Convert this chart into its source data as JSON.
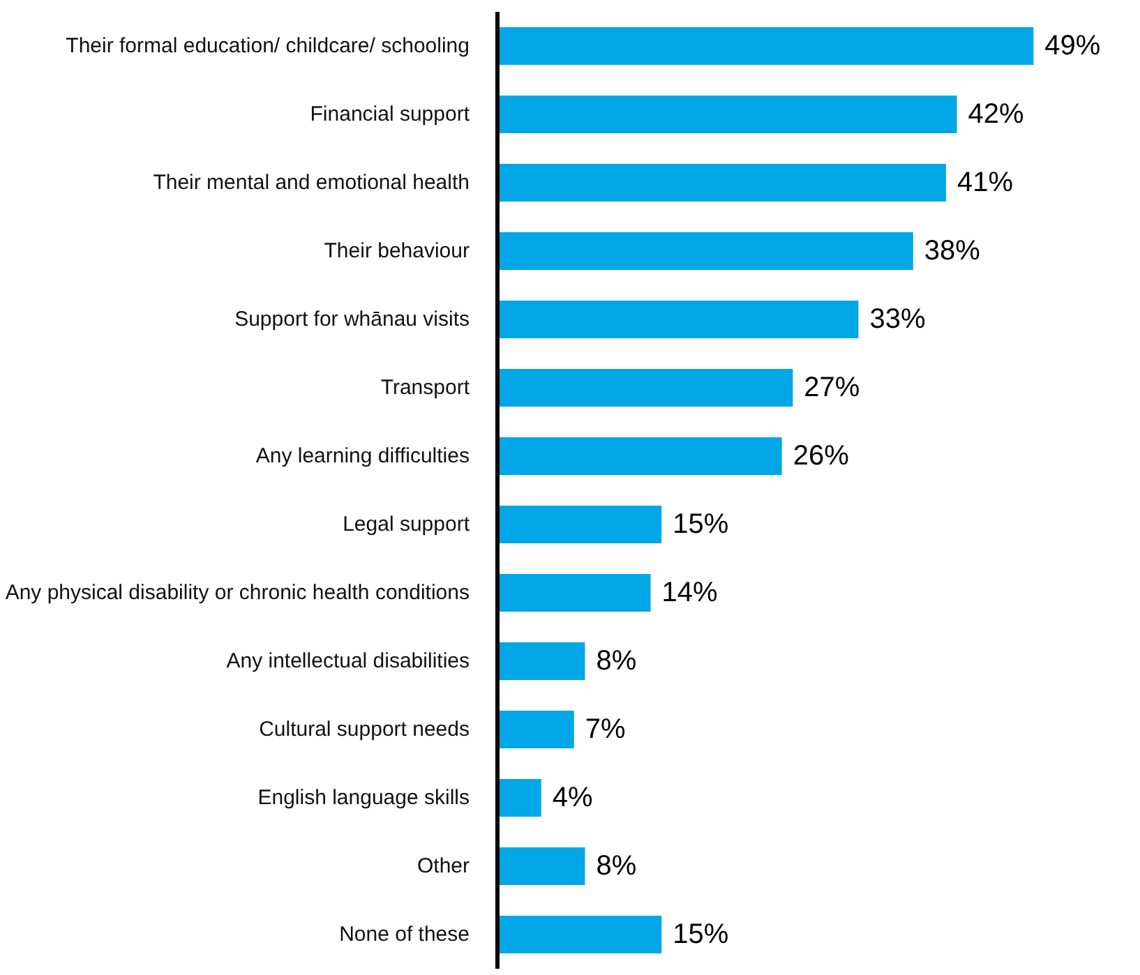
{
  "chart_data": {
    "type": "bar",
    "orientation": "horizontal",
    "categories": [
      "Their formal education/ childcare/ schooling",
      "Financial support",
      "Their mental and emotional health",
      "Their behaviour",
      "Support for whānau visits",
      "Transport",
      "Any learning difficulties",
      "Legal support",
      "Any physical disability or chronic health conditions",
      "Any intellectual disabilities",
      "Cultural support needs",
      "English language skills",
      "Other",
      "None of these"
    ],
    "values": [
      49,
      42,
      41,
      38,
      33,
      27,
      26,
      15,
      14,
      8,
      7,
      4,
      8,
      15
    ],
    "value_labels": [
      "49%",
      "42%",
      "41%",
      "38%",
      "33%",
      "27%",
      "26%",
      "15%",
      "14%",
      "8%",
      "7%",
      "4%",
      "8%",
      "15%"
    ],
    "color": "#00a6e6",
    "grid": false
  }
}
